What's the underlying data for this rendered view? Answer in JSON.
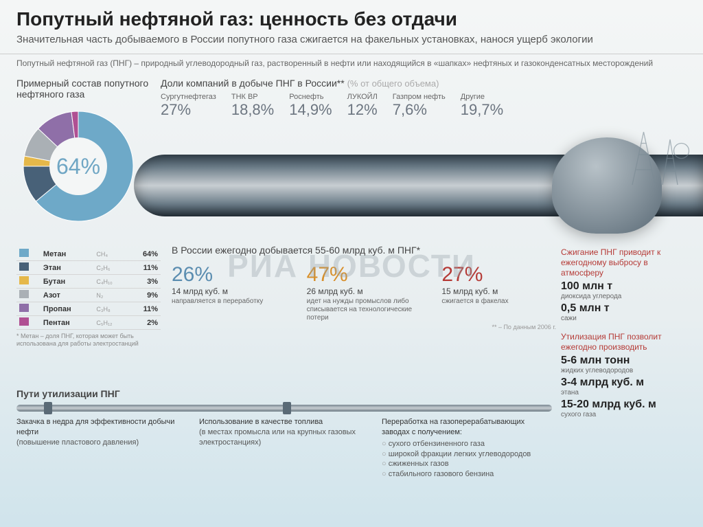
{
  "header": {
    "title": "Попутный нефтяной газ: ценность без отдачи",
    "subtitle": "Значительная часть добываемого в России попутного газа сжигается на факельных установках, нанося ущерб экологии",
    "definition": "Попутный нефтяной газ (ПНГ) – природный углеводородный газ, растворенный в нефти или находящийся в «шапках» нефтяных и газоконденсатных месторождений"
  },
  "pie": {
    "title": "Примерный состав попутного нефтяного газа",
    "main_label": "64%",
    "slices": [
      {
        "label": "Метан",
        "value": 64,
        "color": "#6ea9c8"
      },
      {
        "label": "Этан",
        "value": 11,
        "color": "#486178"
      },
      {
        "label": "Бутан",
        "value": 3,
        "color": "#e5b84a"
      },
      {
        "label": "Азот",
        "value": 9,
        "color": "#aab0b5"
      },
      {
        "label": "Пропан",
        "value": 11,
        "color": "#8f6fa8"
      },
      {
        "label": "Пентан",
        "value": 2,
        "color": "#b05093"
      }
    ]
  },
  "legend": {
    "rows": [
      {
        "name": "Метан",
        "formula": "CH₄",
        "value": "64%",
        "color": "#6ea9c8"
      },
      {
        "name": "Этан",
        "formula": "C₂H₆",
        "value": "11%",
        "color": "#486178"
      },
      {
        "name": "Бутан",
        "formula": "C₄H₁₀",
        "value": "3%",
        "color": "#e5b84a"
      },
      {
        "name": "Азот",
        "formula": "N₂",
        "value": "9%",
        "color": "#aab0b5"
      },
      {
        "name": "Пропан",
        "formula": "C₃H₈",
        "value": "11%",
        "color": "#8f6fa8"
      },
      {
        "name": "Пентан",
        "formula": "C₅H₁₂",
        "value": "2%",
        "color": "#b05093"
      }
    ],
    "note": "* Метан – доля ПНГ, которая может быть использована для работы электростанций"
  },
  "companies": {
    "title": "Доли компаний в добыче ПНГ в России**",
    "title_gray": "(% от общего объема)",
    "items": [
      {
        "name": "Сургутнефтегаз",
        "pct": "27%"
      },
      {
        "name": "ТНК ВР",
        "pct": "18,8%"
      },
      {
        "name": "Роснефть",
        "pct": "14,9%"
      },
      {
        "name": "ЛУКОЙЛ",
        "pct": "12%"
      },
      {
        "name": "Газпром нефть",
        "pct": "7,6%"
      },
      {
        "name": "Другие",
        "pct": "19,7%"
      }
    ]
  },
  "extraction": {
    "title": "В России ежегодно добывается 55-60 млрд куб. м ПНГ*",
    "cols": [
      {
        "big": "26%",
        "cls": "c1",
        "sub": "14 млрд куб. м",
        "desc": "направляется в переработку"
      },
      {
        "big": "47%",
        "cls": "c2",
        "sub": "26 млрд куб. м",
        "desc": "идет на нужды промыслов либо списывается на технологические потери"
      },
      {
        "big": "27%",
        "cls": "c3",
        "sub": "15 млрд куб. м",
        "desc": "сжигается в факелах"
      }
    ],
    "note": "** – По данным 2006 г."
  },
  "facts": {
    "block1": {
      "title": "Сжигание ПНГ приводит к ежегодному выбросу в атмосферу",
      "lines": [
        {
          "n": "100 млн т",
          "u": "диоксида углерода"
        },
        {
          "n": "0,5 млн т",
          "u": "сажи"
        }
      ]
    },
    "block2": {
      "title": "Утилизация ПНГ позволит ежегодно производить",
      "lines": [
        {
          "n": "5-6 млн тонн",
          "u": "жидких углеводородов"
        },
        {
          "n": "3-4 млрд куб. м",
          "u": "этана"
        },
        {
          "n": "15-20 млрд куб. м",
          "u": "сухого газа"
        }
      ]
    }
  },
  "utilization": {
    "title": "Пути утилизации ПНГ",
    "cols": [
      {
        "head": "Закачка в недра для эффективности добычи нефти",
        "sub": "(повышение пластового давления)",
        "items": []
      },
      {
        "head": "Использование в качестве топлива",
        "sub": "(в местах промысла или на крупных газовых электростанциях)",
        "items": []
      },
      {
        "head": "Переработка на газоперерабатывающих заводах с получением:",
        "sub": "",
        "items": [
          "сухого отбензиненного газа",
          "широкой фракции легких углеводородов",
          "сжиженных газов",
          "стабильного газового бензина"
        ]
      }
    ]
  },
  "watermark": "РИА НОВОСТИ"
}
